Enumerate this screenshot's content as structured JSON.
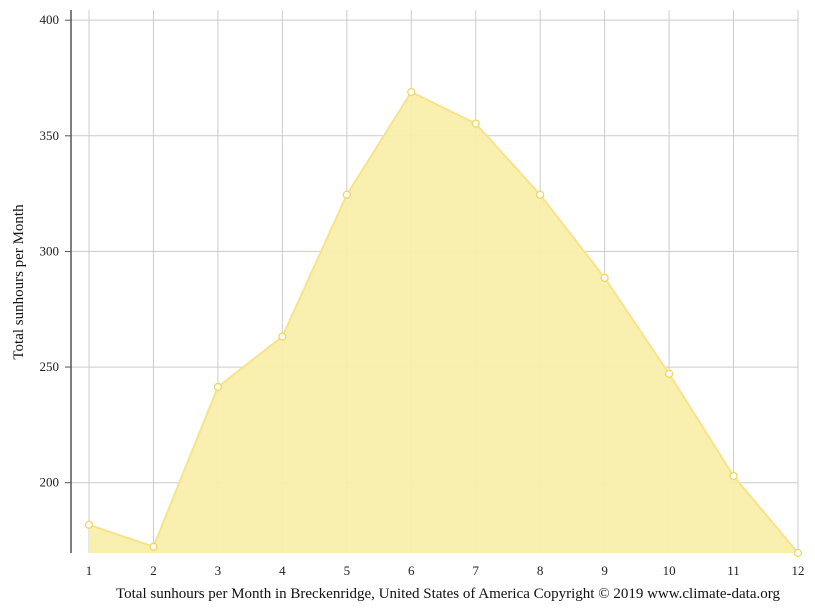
{
  "chart_data": {
    "type": "area",
    "x": [
      1,
      2,
      3,
      4,
      5,
      6,
      7,
      8,
      9,
      10,
      11,
      12
    ],
    "series": [
      {
        "values": [
          181.8,
          172.3,
          241.4,
          263.2,
          324.5,
          368.9,
          355.3,
          324.5,
          288.6,
          247.1,
          202.9,
          169.6
        ]
      }
    ],
    "xlabel": "",
    "ylabel": "Total sunhours per Month",
    "caption": "Total sunhours per Month in Breckenridge, United States of America Copyright © 2019 www.climate-data.org",
    "xlim": [
      1,
      12
    ],
    "ylim": [
      169.6,
      404.4
    ],
    "yticks": [
      200,
      250,
      300,
      350,
      400
    ],
    "xticks": [
      1,
      2,
      3,
      4,
      5,
      6,
      7,
      8,
      9,
      10,
      11,
      12
    ],
    "grid": true,
    "colors": {
      "fill": "#f9eeaa",
      "line": "#f8e38b",
      "marker_stroke": "#f0d75e",
      "marker_fill": "#ffffff",
      "grid": "#cccccc",
      "axis": "#555555"
    }
  }
}
